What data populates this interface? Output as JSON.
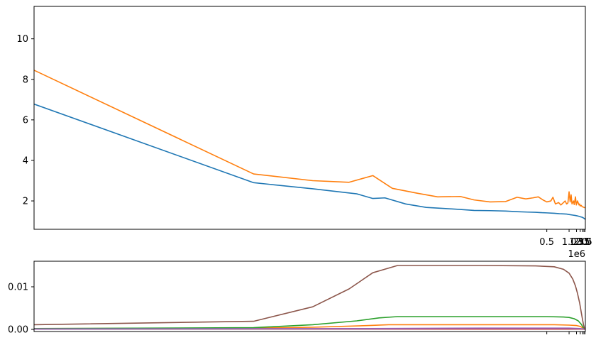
{
  "chart_data": [
    {
      "type": "line",
      "xscale": "reciprocal",
      "xlim": [
        40000,
        3700000
      ],
      "ylim": [
        0.6,
        11.6
      ],
      "yticks": [
        2,
        4,
        6,
        8,
        10
      ],
      "xticks": [
        {
          "value": 500000,
          "label": "0.5"
        },
        {
          "value": 1000000,
          "label": "1.0"
        },
        {
          "value": 1500000,
          "label": "1.5"
        },
        {
          "value": 2000000,
          "label": "2.0"
        },
        {
          "value": 2500000,
          "label": "2.5"
        },
        {
          "value": 3000000,
          "label": "3.0"
        },
        {
          "value": 3500000,
          "label": "3.5"
        }
      ],
      "offset_label": "1e6",
      "grid": false,
      "series": [
        {
          "color": "#1f77b4",
          "points": [
            [
              40000,
              6.78
            ],
            [
              66000,
              2.9
            ],
            [
              80000,
              2.6
            ],
            [
              95000,
              2.35
            ],
            [
              102000,
              2.12
            ],
            [
              108000,
              2.15
            ],
            [
              120000,
              1.85
            ],
            [
              135000,
              1.68
            ],
            [
              150000,
              1.63
            ],
            [
              170000,
              1.58
            ],
            [
              190000,
              1.53
            ],
            [
              220000,
              1.52
            ],
            [
              260000,
              1.5
            ],
            [
              300000,
              1.47
            ],
            [
              350000,
              1.45
            ],
            [
              400000,
              1.44
            ],
            [
              450000,
              1.42
            ],
            [
              500000,
              1.41
            ],
            [
              600000,
              1.39
            ],
            [
              700000,
              1.37
            ],
            [
              800000,
              1.36
            ],
            [
              900000,
              1.35
            ],
            [
              1000000,
              1.33
            ],
            [
              1200000,
              1.3
            ],
            [
              1400000,
              1.28
            ],
            [
              1600000,
              1.26
            ],
            [
              1800000,
              1.24
            ],
            [
              2000000,
              1.22
            ],
            [
              2300000,
              1.2
            ],
            [
              2600000,
              1.18
            ],
            [
              2900000,
              1.15
            ],
            [
              3200000,
              1.13
            ],
            [
              3500000,
              1.1
            ],
            [
              3700000,
              1.08
            ]
          ]
        },
        {
          "color": "#ff7f0e",
          "points": [
            [
              40000,
              8.45
            ],
            [
              66000,
              3.33
            ],
            [
              80000,
              3.0
            ],
            [
              92000,
              2.92
            ],
            [
              102000,
              3.25
            ],
            [
              112000,
              2.62
            ],
            [
              128000,
              2.38
            ],
            [
              145000,
              2.2
            ],
            [
              170000,
              2.22
            ],
            [
              190000,
              2.05
            ],
            [
              220000,
              1.95
            ],
            [
              260000,
              1.97
            ],
            [
              300000,
              2.18
            ],
            [
              340000,
              2.1
            ],
            [
              380000,
              2.15
            ],
            [
              420000,
              2.2
            ],
            [
              460000,
              2.05
            ],
            [
              500000,
              1.95
            ],
            [
              550000,
              2.0
            ],
            [
              580000,
              2.18
            ],
            [
              620000,
              1.85
            ],
            [
              680000,
              1.92
            ],
            [
              730000,
              1.8
            ],
            [
              800000,
              1.92
            ],
            [
              850000,
              2.0
            ],
            [
              900000,
              1.85
            ],
            [
              950000,
              1.9
            ],
            [
              1000000,
              2.45
            ],
            [
              1050000,
              1.95
            ],
            [
              1100000,
              2.3
            ],
            [
              1150000,
              1.85
            ],
            [
              1250000,
              2.0
            ],
            [
              1300000,
              1.82
            ],
            [
              1400000,
              2.2
            ],
            [
              1480000,
              1.8
            ],
            [
              1600000,
              2.0
            ],
            [
              1700000,
              1.9
            ],
            [
              1800000,
              1.8
            ],
            [
              1900000,
              1.85
            ],
            [
              2000000,
              1.75
            ],
            [
              2200000,
              1.78
            ],
            [
              2400000,
              1.72
            ],
            [
              2700000,
              1.7
            ],
            [
              3000000,
              1.68
            ],
            [
              3300000,
              1.67
            ],
            [
              3500000,
              1.67
            ],
            [
              3700000,
              1.68
            ]
          ]
        }
      ]
    },
    {
      "type": "line",
      "xscale": "reciprocal",
      "xlim": [
        40000,
        3700000
      ],
      "ylim": [
        -0.0005,
        0.016
      ],
      "yticks": [
        {
          "value": 0,
          "label": "0.00"
        },
        {
          "value": 0.01,
          "label": "0.01"
        }
      ],
      "xticks": [
        500000,
        1000000,
        1500000,
        2000000,
        2500000,
        3000000,
        3500000
      ],
      "grid": false,
      "series": [
        {
          "color": "#1f77b4",
          "points": [
            [
              40000,
              0.0001
            ],
            [
              200000,
              0.0001
            ],
            [
              1000000,
              0.0001
            ],
            [
              3000000,
              0.0001
            ],
            [
              3700000,
              0.0
            ]
          ]
        },
        {
          "color": "#ff7f0e",
          "points": [
            [
              40000,
              0.0002
            ],
            [
              66000,
              0.0003
            ],
            [
              80000,
              0.0005
            ],
            [
              100000,
              0.0009
            ],
            [
              110000,
              0.0011
            ],
            [
              200000,
              0.0011
            ],
            [
              600000,
              0.0011
            ],
            [
              1000000,
              0.001
            ],
            [
              1500000,
              0.0009
            ],
            [
              2000000,
              0.0007
            ],
            [
              2500000,
              0.0004
            ],
            [
              3000000,
              0.0002
            ],
            [
              3700000,
              0.0
            ]
          ]
        },
        {
          "color": "#2ca02c",
          "points": [
            [
              40000,
              0.0002
            ],
            [
              66000,
              0.0004
            ],
            [
              80000,
              0.0011
            ],
            [
              95000,
              0.002
            ],
            [
              105000,
              0.0027
            ],
            [
              115000,
              0.003
            ],
            [
              200000,
              0.003
            ],
            [
              500000,
              0.003
            ],
            [
              800000,
              0.0029
            ],
            [
              1000000,
              0.0028
            ],
            [
              1300000,
              0.0025
            ],
            [
              1700000,
              0.002
            ],
            [
              2200000,
              0.0012
            ],
            [
              2700000,
              0.0005
            ],
            [
              3200000,
              0.0001
            ],
            [
              3700000,
              0.0
            ]
          ]
        },
        {
          "color": "#d62728",
          "points": [
            [
              40000,
              0.0001
            ],
            [
              500000,
              0.0001
            ],
            [
              2000000,
              0.0001
            ],
            [
              3700000,
              0.0
            ]
          ]
        },
        {
          "color": "#9467bd",
          "points": [
            [
              40000,
              0.0001
            ],
            [
              100000,
              0.0002
            ],
            [
              200000,
              0.0003
            ],
            [
              1000000,
              0.0003
            ],
            [
              2000000,
              0.0002
            ],
            [
              3000000,
              0.0001
            ],
            [
              3700000,
              0.0
            ]
          ]
        },
        {
          "color": "#8c564b",
          "points": [
            [
              40000,
              0.0011
            ],
            [
              66000,
              0.0019
            ],
            [
              80000,
              0.0053
            ],
            [
              92000,
              0.0095
            ],
            [
              102000,
              0.0133
            ],
            [
              115000,
              0.015
            ],
            [
              200000,
              0.015
            ],
            [
              400000,
              0.0149
            ],
            [
              600000,
              0.0147
            ],
            [
              800000,
              0.0141
            ],
            [
              1000000,
              0.0132
            ],
            [
              1200000,
              0.0118
            ],
            [
              1400000,
              0.0102
            ],
            [
              1600000,
              0.0085
            ],
            [
              1900000,
              0.0062
            ],
            [
              2200000,
              0.004
            ],
            [
              2500000,
              0.0024
            ],
            [
              2800000,
              0.0012
            ],
            [
              3100000,
              0.0005
            ],
            [
              3400000,
              0.0001
            ],
            [
              3700000,
              0.0
            ]
          ]
        }
      ]
    }
  ]
}
